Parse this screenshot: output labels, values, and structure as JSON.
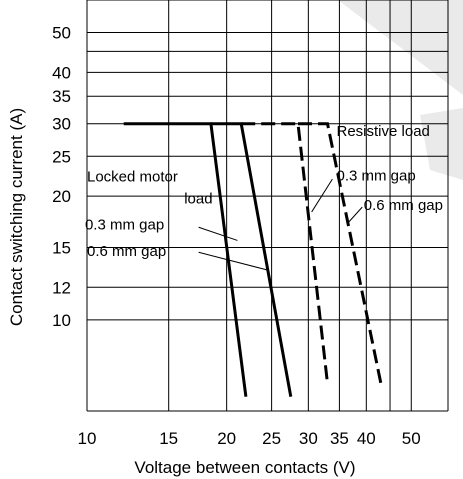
{
  "chart_data": {
    "type": "line",
    "title": "",
    "xlabel": "Voltage between contacts (V)",
    "ylabel": "Contact switching current (A)",
    "x_scale": "log",
    "y_scale": "log",
    "xlim": [
      10,
      60
    ],
    "ylim": [
      6,
      60
    ],
    "x_gridlines": [
      10,
      15,
      20,
      25,
      30,
      35,
      40,
      45,
      50,
      60
    ],
    "y_gridlines": [
      10,
      12,
      15,
      20,
      25,
      30,
      35,
      40,
      45,
      50,
      60
    ],
    "x_ticks": [
      {
        "value": 10,
        "label": "10"
      },
      {
        "value": 15,
        "label": "15"
      },
      {
        "value": 20,
        "label": "20"
      },
      {
        "value": 25,
        "label": "25"
      },
      {
        "value": 30,
        "label": "30"
      },
      {
        "value": 35,
        "label": "35"
      },
      {
        "value": 40,
        "label": "40"
      },
      {
        "value": 50,
        "label": "50"
      }
    ],
    "y_ticks": [
      {
        "value": 10,
        "label": "10"
      },
      {
        "value": 12,
        "label": "12"
      },
      {
        "value": 15,
        "label": "15"
      },
      {
        "value": 20,
        "label": "20"
      },
      {
        "value": 25,
        "label": "25"
      },
      {
        "value": 30,
        "label": "30"
      },
      {
        "value": 35,
        "label": "35"
      },
      {
        "value": 40,
        "label": "40"
      },
      {
        "value": 50,
        "label": "50"
      }
    ],
    "series": [
      {
        "style": "solid",
        "points": [
          [
            12,
            30
          ],
          [
            18.5,
            30
          ],
          [
            22,
            6.5
          ]
        ]
      },
      {
        "style": "solid",
        "points": [
          [
            18.5,
            30
          ],
          [
            21.5,
            30
          ],
          [
            27.5,
            6.5
          ]
        ]
      },
      {
        "style": "dashed",
        "points": [
          [
            21.5,
            30
          ],
          [
            28.5,
            30
          ],
          [
            33,
            7
          ]
        ]
      },
      {
        "style": "dashed",
        "points": [
          [
            28.5,
            30
          ],
          [
            33,
            30
          ],
          [
            43,
            7
          ]
        ]
      }
    ],
    "annotations": [
      {
        "text": "Locked motor",
        "pos": [
          10,
          21.7
        ],
        "anchor": "start"
      },
      {
        "text": "load",
        "pos": [
          16.2,
          19.2
        ],
        "anchor": "start"
      },
      {
        "text": "0.3 mm gap",
        "pos": [
          9.9,
          16.6
        ],
        "anchor": "start"
      },
      {
        "text": "0.6 mm gap",
        "pos": [
          10,
          14.3
        ],
        "anchor": "start"
      },
      {
        "text": "Resistive load",
        "pos": [
          34.5,
          28
        ],
        "anchor": "start"
      },
      {
        "text": "0.3 mm gap",
        "pos": [
          34.5,
          21.8
        ],
        "anchor": "start"
      },
      {
        "text": "0.6 mm gap",
        "pos": [
          39.5,
          18.5
        ],
        "anchor": "start"
      }
    ],
    "pointers": [
      {
        "from": [
          17.4,
          16.8
        ],
        "to": [
          21.1,
          15.6
        ]
      },
      {
        "from": [
          17.4,
          14.6
        ],
        "to": [
          24.6,
          13.2
        ]
      },
      {
        "from": [
          33.8,
          22
        ],
        "to": [
          30.5,
          18.3
        ]
      },
      {
        "from": [
          39.2,
          18.8
        ],
        "to": [
          36.5,
          17.2
        ]
      }
    ],
    "grid": true,
    "legend": "none"
  }
}
